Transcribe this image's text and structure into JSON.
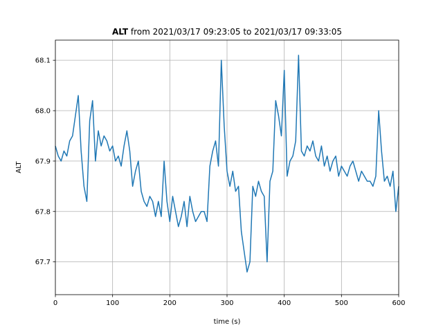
{
  "chart_data": {
    "type": "line",
    "title": {
      "variable": "ALT",
      "rest": " from 2021/03/17 09:23:05 to 2021/03/17 09:33:05"
    },
    "xlabel": "time (s)",
    "ylabel": "ALT",
    "xlim": [
      0,
      600
    ],
    "ylim": [
      67.635,
      68.14
    ],
    "xticks": [
      0,
      100,
      200,
      300,
      400,
      500,
      600
    ],
    "yticks": [
      67.7,
      67.8,
      67.9,
      68.0,
      68.1
    ],
    "ytick_labels": [
      "67.7",
      "67.8",
      "67.9",
      "68.0",
      "68.1"
    ],
    "grid": true,
    "legend": "none",
    "series": [
      {
        "color": "#1f77b4",
        "x": [
          0,
          5,
          10,
          15,
          20,
          25,
          30,
          35,
          40,
          45,
          50,
          55,
          60,
          65,
          70,
          75,
          80,
          85,
          90,
          95,
          100,
          105,
          110,
          115,
          120,
          125,
          130,
          135,
          140,
          145,
          150,
          155,
          160,
          165,
          170,
          175,
          180,
          185,
          190,
          195,
          200,
          205,
          210,
          215,
          220,
          225,
          230,
          235,
          240,
          245,
          250,
          255,
          260,
          265,
          270,
          275,
          280,
          285,
          290,
          295,
          300,
          305,
          310,
          315,
          320,
          325,
          330,
          335,
          340,
          345,
          350,
          355,
          360,
          365,
          370,
          375,
          380,
          385,
          390,
          395,
          400,
          405,
          410,
          415,
          420,
          425,
          430,
          435,
          440,
          445,
          450,
          455,
          460,
          465,
          470,
          475,
          480,
          485,
          490,
          495,
          500,
          505,
          510,
          515,
          520,
          525,
          530,
          535,
          540,
          545,
          550,
          555,
          560,
          565,
          570,
          575,
          580,
          585,
          590,
          595,
          600
        ],
        "y": [
          67.93,
          67.91,
          67.9,
          67.92,
          67.91,
          67.94,
          67.95,
          67.99,
          68.03,
          67.92,
          67.85,
          67.82,
          67.98,
          68.02,
          67.9,
          67.96,
          67.93,
          67.95,
          67.94,
          67.92,
          67.93,
          67.9,
          67.91,
          67.89,
          67.93,
          67.96,
          67.92,
          67.85,
          67.88,
          67.9,
          67.84,
          67.82,
          67.81,
          67.83,
          67.82,
          67.79,
          67.82,
          67.79,
          67.9,
          67.82,
          67.78,
          67.83,
          67.8,
          67.77,
          67.79,
          67.82,
          67.77,
          67.83,
          67.8,
          67.78,
          67.79,
          67.8,
          67.8,
          67.78,
          67.89,
          67.92,
          67.94,
          67.89,
          68.1,
          67.97,
          67.88,
          67.85,
          67.88,
          67.84,
          67.85,
          67.76,
          67.72,
          67.68,
          67.7,
          67.85,
          67.83,
          67.86,
          67.84,
          67.83,
          67.7,
          67.86,
          67.88,
          68.02,
          67.99,
          67.95,
          68.08,
          67.87,
          67.9,
          67.91,
          67.94,
          68.11,
          67.92,
          67.91,
          67.93,
          67.92,
          67.94,
          67.91,
          67.9,
          67.93,
          67.89,
          67.91,
          67.88,
          67.9,
          67.91,
          67.87,
          67.89,
          67.88,
          67.87,
          67.89,
          67.9,
          67.88,
          67.86,
          67.88,
          67.87,
          67.86,
          67.86,
          67.85,
          67.87,
          68.0,
          67.92,
          67.86,
          67.87,
          67.85,
          67.88,
          67.8,
          67.85
        ]
      }
    ]
  }
}
